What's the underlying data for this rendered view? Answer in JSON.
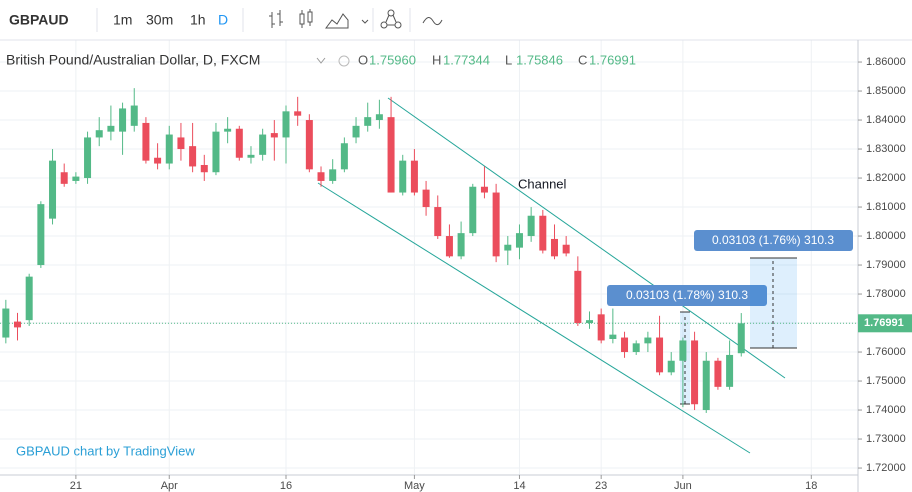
{
  "toolbar": {
    "symbol": "GBPAUD",
    "intervals": [
      "1m",
      "30m",
      "1h",
      "D"
    ]
  },
  "chart_data": {
    "type": "candlestick",
    "title": "British Pound/Australian Dollar, D, FXCM",
    "ohlc_legend": [
      {
        "label": "O",
        "value": "1.75960"
      },
      {
        "label": "H",
        "value": "1.77344"
      },
      {
        "label": "L",
        "value": "1.75846"
      },
      {
        "label": "C",
        "value": "1.76991"
      }
    ],
    "open": [
      1.765,
      1.7705,
      1.771,
      1.79,
      1.806,
      1.822,
      1.819,
      1.82,
      1.834,
      1.836,
      1.836,
      1.838,
      1.839,
      1.827,
      1.825,
      1.834,
      1.831,
      1.8245,
      1.822,
      1.836,
      1.837,
      1.827,
      1.828,
      1.8355,
      1.834,
      1.843,
      1.84,
      1.822,
      1.819,
      1.823,
      1.834,
      1.838,
      1.84,
      1.841,
      1.815,
      1.826,
      1.816,
      1.81,
      1.8,
      1.793,
      1.801,
      1.817,
      1.815,
      1.795,
      1.796,
      1.8,
      1.807,
      1.799,
      1.797,
      1.788,
      1.77,
      1.773,
      1.7645,
      1.765,
      1.76,
      1.763,
      1.765,
      1.753,
      1.757,
      1.764,
      1.74,
      1.757,
      1.748,
      1.7596
    ],
    "high": [
      1.778,
      1.7735,
      1.787,
      1.812,
      1.83,
      1.825,
      1.822,
      1.836,
      1.841,
      1.845,
      1.846,
      1.851,
      1.841,
      1.832,
      1.838,
      1.839,
      1.839,
      1.828,
      1.839,
      1.841,
      1.838,
      1.831,
      1.837,
      1.84,
      1.845,
      1.848,
      1.842,
      1.824,
      1.8265,
      1.834,
      1.841,
      1.846,
      1.847,
      1.848,
      1.828,
      1.83,
      1.819,
      1.814,
      1.804,
      1.805,
      1.818,
      1.824,
      1.818,
      1.8,
      1.804,
      1.81,
      1.809,
      1.804,
      1.8,
      1.793,
      1.774,
      1.775,
      1.775,
      1.767,
      1.764,
      1.767,
      1.7725,
      1.76,
      1.765,
      1.767,
      1.76,
      1.758,
      1.764,
      1.77344
    ],
    "low": [
      1.763,
      1.764,
      1.769,
      1.789,
      1.804,
      1.817,
      1.818,
      1.818,
      1.831,
      1.833,
      1.828,
      1.836,
      1.825,
      1.823,
      1.823,
      1.826,
      1.822,
      1.819,
      1.821,
      1.832,
      1.826,
      1.825,
      1.826,
      1.826,
      1.825,
      1.838,
      1.822,
      1.817,
      1.818,
      1.822,
      1.832,
      1.836,
      1.837,
      1.815,
      1.814,
      1.814,
      1.807,
      1.799,
      1.7925,
      1.792,
      1.8,
      1.813,
      1.791,
      1.79,
      1.792,
      1.798,
      1.794,
      1.792,
      1.793,
      1.769,
      1.768,
      1.763,
      1.763,
      1.758,
      1.759,
      1.76,
      1.752,
      1.752,
      1.741,
      1.74,
      1.739,
      1.747,
      1.747,
      1.75846
    ],
    "close": [
      1.775,
      1.7685,
      1.786,
      1.811,
      1.826,
      1.818,
      1.8205,
      1.834,
      1.8365,
      1.838,
      1.844,
      1.845,
      1.826,
      1.825,
      1.835,
      1.83,
      1.824,
      1.822,
      1.836,
      1.837,
      1.827,
      1.828,
      1.835,
      1.834,
      1.843,
      1.8415,
      1.823,
      1.819,
      1.823,
      1.832,
      1.838,
      1.841,
      1.842,
      1.815,
      1.826,
      1.815,
      1.81,
      1.8,
      1.793,
      1.801,
      1.817,
      1.815,
      1.793,
      1.797,
      1.801,
      1.807,
      1.795,
      1.793,
      1.794,
      1.77,
      1.771,
      1.764,
      1.766,
      1.76,
      1.763,
      1.765,
      1.753,
      1.757,
      1.764,
      1.742,
      1.757,
      1.748,
      1.759,
      1.76991
    ],
    "up_color": "#53b987",
    "down_color": "#eb4d5c",
    "xlim": [
      -0.5,
      73
    ],
    "xticks": [
      {
        "value": 6,
        "label": "21"
      },
      {
        "value": 14,
        "label": "Apr"
      },
      {
        "value": 24,
        "label": "16"
      },
      {
        "value": 35,
        "label": "May"
      },
      {
        "value": 44,
        "label": "14"
      },
      {
        "value": 51,
        "label": "23"
      },
      {
        "value": 58,
        "label": "Jun"
      },
      {
        "value": 69,
        "label": "18"
      }
    ],
    "ylim": [
      1.7176,
      1.8676
    ],
    "yticks": [
      {
        "value": 1.72,
        "label": "1.72000"
      },
      {
        "value": 1.73,
        "label": "1.73000"
      },
      {
        "value": 1.74,
        "label": "1.74000"
      },
      {
        "value": 1.75,
        "label": "1.75000"
      },
      {
        "value": 1.76,
        "label": "1.76000"
      },
      {
        "value": 1.77,
        "label": "1.77000"
      },
      {
        "value": 1.78,
        "label": "1.78000"
      },
      {
        "value": 1.79,
        "label": "1.79000"
      },
      {
        "value": 1.8,
        "label": "1.80000"
      },
      {
        "value": 1.81,
        "label": "1.81000"
      },
      {
        "value": 1.82,
        "label": "1.82000"
      },
      {
        "value": 1.83,
        "label": "1.83000"
      },
      {
        "value": 1.84,
        "label": "1.84000"
      },
      {
        "value": 1.85,
        "label": "1.85000"
      },
      {
        "value": 1.86,
        "label": "1.86000"
      }
    ],
    "grid": true,
    "last_price": {
      "value": 1.76991,
      "label": "1.76991"
    },
    "annotations": [
      "Channel",
      "0.03103 (1.78%) 310.3",
      "0.03103 (1.76%) 310.3"
    ],
    "watermark": "GBPAUD chart by TradingView"
  }
}
